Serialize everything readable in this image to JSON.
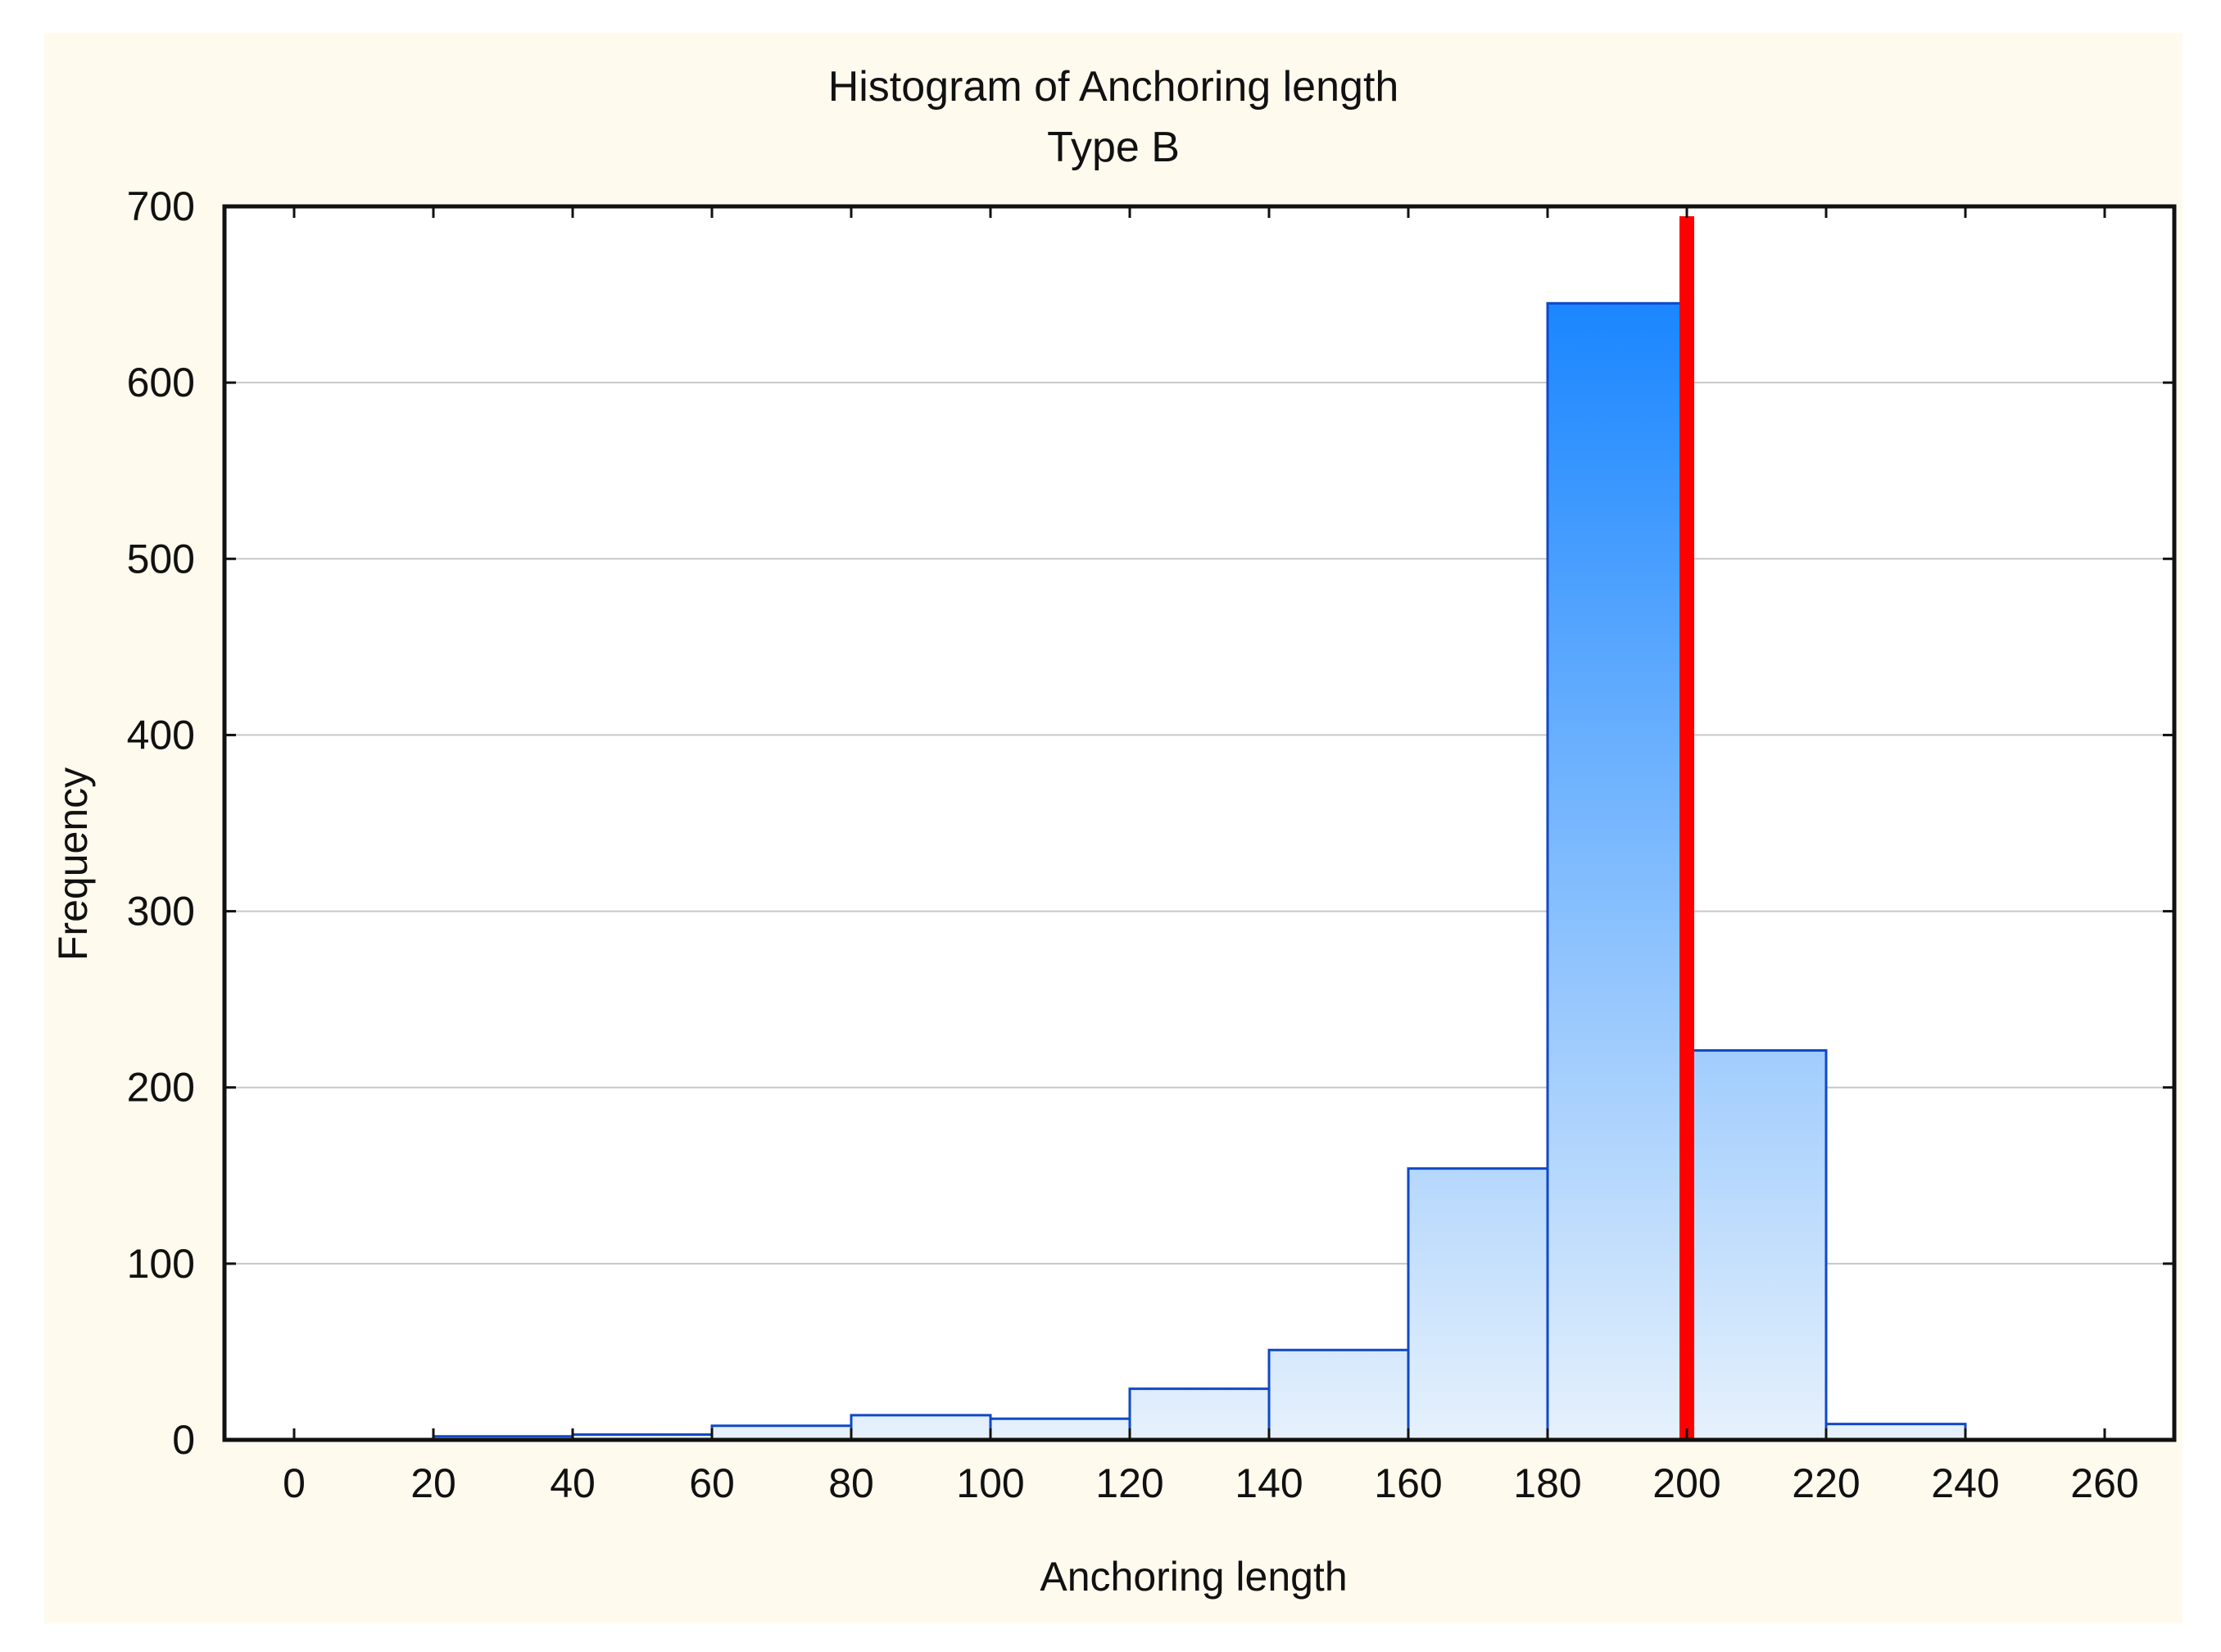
{
  "chart_data": {
    "type": "bar",
    "title": "Histogram of Anchoring length",
    "subtitle": "Type B",
    "xlabel": "Anchoring length",
    "ylabel": "Frequency",
    "xlim": [
      -10,
      270
    ],
    "ylim": [
      0,
      700
    ],
    "x_ticks": [
      0,
      20,
      40,
      60,
      80,
      100,
      120,
      140,
      160,
      180,
      200,
      220,
      240,
      260
    ],
    "y_ticks": [
      0,
      100,
      200,
      300,
      400,
      500,
      600,
      700
    ],
    "bins": [
      {
        "from": 20,
        "to": 40,
        "value": 2
      },
      {
        "from": 40,
        "to": 60,
        "value": 3
      },
      {
        "from": 60,
        "to": 80,
        "value": 8
      },
      {
        "from": 80,
        "to": 100,
        "value": 14
      },
      {
        "from": 100,
        "to": 120,
        "value": 12
      },
      {
        "from": 120,
        "to": 140,
        "value": 29
      },
      {
        "from": 140,
        "to": 160,
        "value": 51
      },
      {
        "from": 160,
        "to": 180,
        "value": 154
      },
      {
        "from": 180,
        "to": 200,
        "value": 645
      },
      {
        "from": 200,
        "to": 220,
        "value": 221
      },
      {
        "from": 220,
        "to": 240,
        "value": 9
      }
    ],
    "reference_line": {
      "x": 200,
      "color": "#ff0000"
    },
    "grid": "horizontal",
    "colors": {
      "bar_top": "#1a86ff",
      "bar_bottom": "#e6f1fc",
      "bar_edge": "#1048c8",
      "panel_background": "#fefaee",
      "plot_background": "#ffffff",
      "grid": "#c8c8c8"
    }
  }
}
